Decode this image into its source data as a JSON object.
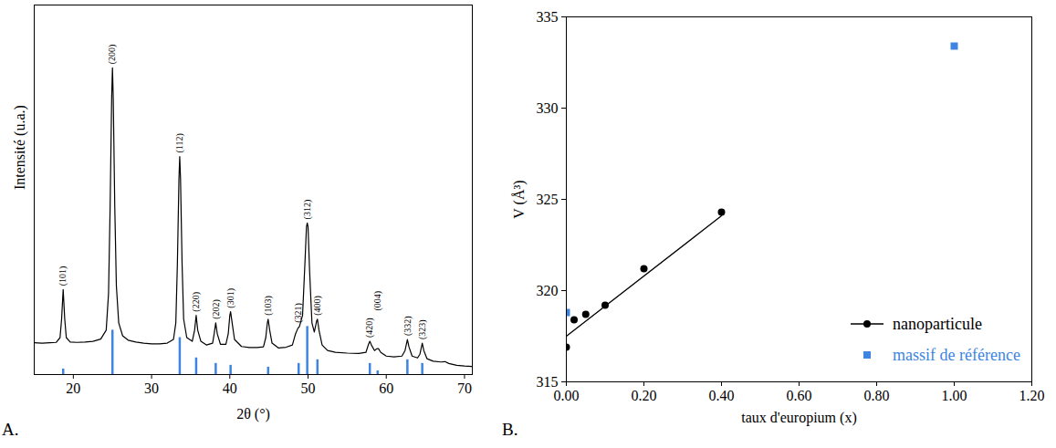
{
  "chart_data": [
    {
      "type": "line",
      "panel_label": "A.",
      "xlabel": "2θ (°)",
      "ylabel": "Intensité (u.a.)",
      "xlim": [
        15,
        71
      ],
      "xticks": [
        20,
        30,
        40,
        50,
        60,
        70
      ],
      "ylim": [
        0,
        100
      ],
      "tick_labels": "x",
      "grid": false,
      "series": [
        {
          "type": "line",
          "color": "#000000",
          "x": [
            15,
            16,
            17,
            17.8,
            18.3,
            18.5,
            18.7,
            18.9,
            19.1,
            19.6,
            20.5,
            21.5,
            22.5,
            23.5,
            24.2,
            24.5,
            24.7,
            24.9,
            25.0,
            25.1,
            25.3,
            25.5,
            25.8,
            26.3,
            27,
            28,
            29,
            30,
            31,
            32,
            32.8,
            33.1,
            33.3,
            33.5,
            33.6,
            33.7,
            33.9,
            34.1,
            34.5,
            35.2,
            35.5,
            35.7,
            35.9,
            36.3,
            37,
            37.8,
            38.0,
            38.2,
            38.4,
            38.8,
            39.5,
            39.8,
            40.0,
            40.1,
            40.3,
            40.6,
            41.5,
            42.5,
            43.5,
            44.3,
            44.6,
            44.8,
            44.9,
            45.1,
            45.4,
            46.2,
            47.2,
            48.0,
            48.4,
            48.7,
            48.9,
            49.3,
            49.6,
            49.8,
            49.9,
            50.0,
            50.2,
            50.5,
            50.8,
            51.1,
            51.2,
            51.4,
            51.8,
            52.5,
            53.5,
            55,
            56.5,
            57.4,
            57.7,
            57.9,
            58.1,
            58.5,
            58.8,
            59.0,
            59.3,
            60,
            61,
            62,
            62.4,
            62.7,
            62.9,
            63.3,
            64,
            64.3,
            64.6,
            64.8,
            65.2,
            66,
            67,
            67.5,
            68,
            69,
            70,
            71
          ],
          "values": [
            8.6,
            8.5,
            8.6,
            8.7,
            10,
            15,
            23,
            15,
            10,
            8.8,
            8.7,
            8.8,
            9,
            9.6,
            12,
            22,
            45,
            75,
            83,
            75,
            45,
            24,
            14,
            10.5,
            9.3,
            8.8,
            8.5,
            8.3,
            8.3,
            8.5,
            9.5,
            14,
            30,
            53,
            59,
            53,
            30,
            15,
            10,
            9,
            12,
            16,
            12,
            9,
            8,
            8.5,
            11,
            14,
            11,
            8.2,
            8.2,
            11,
            16,
            17,
            14,
            9.5,
            7.6,
            7.3,
            7.3,
            7.5,
            10,
            14,
            15,
            12,
            8.5,
            7.2,
            7.4,
            8,
            11,
            12.5,
            13,
            16,
            30,
            40,
            41,
            40,
            28,
            14,
            11.5,
            14.5,
            15,
            12,
            8,
            6.5,
            6,
            5.8,
            5.7,
            6,
            8,
            9,
            8,
            6.5,
            7,
            7,
            6,
            5,
            4.8,
            5,
            6.5,
            9.5,
            7.5,
            5,
            4.5,
            5.5,
            8.5,
            6.5,
            4.3,
            3.6,
            3.4,
            3.5,
            3,
            2.5,
            2.3,
            2.2
          ]
        },
        {
          "type": "bar",
          "color": "#3d85e0",
          "x": [
            18.7,
            25.0,
            33.6,
            35.7,
            38.2,
            40.1,
            44.9,
            48.8,
            49.9,
            51.2,
            57.9,
            58.9,
            62.7,
            64.6
          ],
          "values": [
            1.5,
            12,
            10,
            4.5,
            3,
            2.5,
            2,
            3,
            13,
            4,
            3,
            1,
            4,
            3
          ]
        }
      ],
      "annotations": [
        {
          "text": "(101)",
          "x": 18.7
        },
        {
          "text": "(200)",
          "x": 25.0
        },
        {
          "text": "(112)",
          "x": 33.6
        },
        {
          "text": "(220)",
          "x": 35.7
        },
        {
          "text": "(202)",
          "x": 38.2
        },
        {
          "text": "(301)",
          "x": 40.1
        },
        {
          "text": "(103)",
          "x": 44.9
        },
        {
          "text": "(321)",
          "x": 48.8
        },
        {
          "text": "(312)",
          "x": 49.9
        },
        {
          "text": "(400)",
          "x": 51.2
        },
        {
          "text": "(420)",
          "x": 57.9
        },
        {
          "text": "(004)",
          "x": 58.9
        },
        {
          "text": "(332)",
          "x": 62.7
        },
        {
          "text": "(323)",
          "x": 64.6
        }
      ]
    },
    {
      "type": "scatter",
      "panel_label": "B.",
      "xlabel": "taux d'europium (x)",
      "ylabel": "V (Å³)",
      "xlim": [
        0,
        1.2
      ],
      "xticks": [
        {
          "value": 0,
          "label": "0.00"
        },
        {
          "value": 0.2,
          "label": "0.20"
        },
        {
          "value": 0.4,
          "label": "0.40"
        },
        {
          "value": 0.6,
          "label": "0.60"
        },
        {
          "value": 0.8,
          "label": "0.80"
        },
        {
          "value": 1.0,
          "label": "1.00"
        },
        {
          "value": 1.2,
          "label": "1.20"
        }
      ],
      "ylim": [
        315,
        335
      ],
      "yticks": [
        315,
        320,
        325,
        330,
        335
      ],
      "grid": false,
      "legend": "lower right",
      "series": [
        {
          "name": "nanoparticule",
          "color": "#000000",
          "marker": "circle",
          "line_style": "solid",
          "x": [
            0,
            0.02,
            0.05,
            0.1,
            0.2,
            0.4
          ],
          "values": [
            316.9,
            318.4,
            318.7,
            319.2,
            321.2,
            324.3
          ],
          "fit": {
            "x": [
              0,
              0.4
            ],
            "values": [
              317.5,
              324.1
            ]
          }
        },
        {
          "name": "massif de référence",
          "color": "#3d85e0",
          "marker": "square",
          "x": [
            0,
            1.0
          ],
          "values": [
            318.8,
            333.4
          ]
        }
      ]
    }
  ]
}
